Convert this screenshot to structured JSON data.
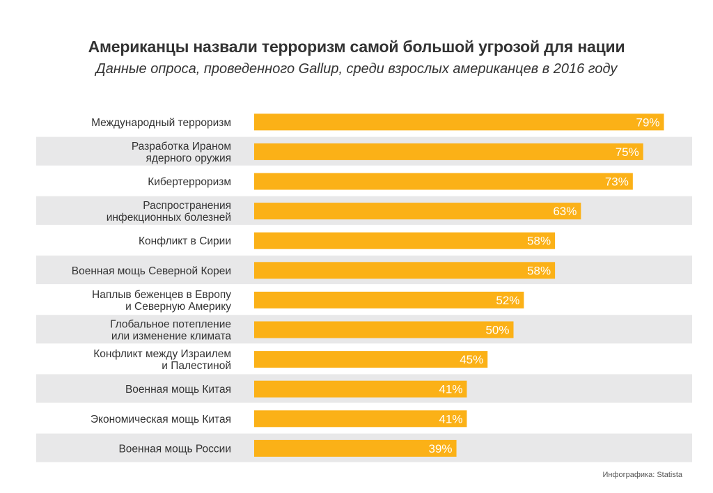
{
  "header": {
    "title": "Американцы назвали терроризм самой большой угрозой для нации",
    "subtitle": "Данные опроса, проведенного Gallup, среди взрослых американцев в 2016 году"
  },
  "footer": {
    "source": "Инфографика: Statista"
  },
  "colors": {
    "bar": "#fbb117",
    "stripe": "#e8e8e9",
    "text": "#333333",
    "value_text": "#ffffff"
  },
  "chart_data": {
    "type": "bar",
    "orientation": "horizontal",
    "unit": "%",
    "xlim": [
      0,
      100
    ],
    "grid": false,
    "categories": [
      [
        "Международный терроризм"
      ],
      [
        "Разработка Ираном",
        "ядерного оружия"
      ],
      [
        "Кибертерроризм"
      ],
      [
        "Распространения",
        "инфекционных болезней"
      ],
      [
        "Конфликт в Сирии"
      ],
      [
        "Военная мощь Северной Кореи"
      ],
      [
        "Наплыв беженцев в Европу",
        "и Северную Америку"
      ],
      [
        "Глобальное потепление",
        "или изменение климата"
      ],
      [
        "Конфликт между Израилем",
        "и Палестиной"
      ],
      [
        "Военная мощь Китая"
      ],
      [
        "Экономическая мощь Китая"
      ],
      [
        "Военная мощь России"
      ]
    ],
    "values": [
      79,
      75,
      73,
      63,
      58,
      58,
      52,
      50,
      45,
      41,
      41,
      39
    ],
    "value_labels": [
      "79%",
      "75%",
      "73%",
      "63%",
      "58%",
      "58%",
      "52%",
      "50%",
      "45%",
      "41%",
      "41%",
      "39%"
    ]
  }
}
